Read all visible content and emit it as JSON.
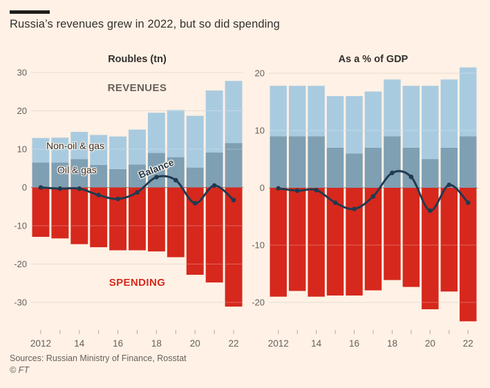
{
  "page": {
    "title": "Russia’s revenues grew in 2022, but so did spending"
  },
  "labels": {
    "revenues": "REVENUES",
    "spending": "SPENDING",
    "non_oil_gas": "Non-oil & gas",
    "oil_gas": "Oil & gas",
    "balance": "Balance"
  },
  "footer": {
    "sources": "Sources: Russian Ministry of Finance, Rosstat",
    "copyright": "© FT"
  },
  "colors": {
    "background": "#fff1e5",
    "bar_non_oil_gas": "#a9cbe0",
    "bar_oil_gas": "#7f9fb3",
    "bar_spending": "#d6281d",
    "balance_line": "#213a50",
    "grid": "#ddd0c1",
    "zero_line": "#8f8579",
    "axis_text": "#66605c",
    "tick_mark": "#b3a89c",
    "title_text": "#33302e"
  },
  "chart_data": [
    {
      "type": "bar",
      "title": "Roubles (tn)",
      "categories": [
        "2012",
        "2013",
        "2014",
        "2015",
        "2016",
        "2017",
        "2018",
        "2019",
        "2020",
        "2021",
        "2022"
      ],
      "series": [
        {
          "name": "Oil & gas revenues",
          "type": "bar-stack",
          "color": "#7f9fb3",
          "values": [
            6.5,
            6.5,
            7.4,
            5.9,
            4.8,
            6.0,
            9.0,
            7.9,
            5.2,
            9.1,
            11.6
          ]
        },
        {
          "name": "Non-oil & gas revenues",
          "type": "bar-stack",
          "color": "#a9cbe0",
          "values": [
            6.4,
            6.5,
            7.1,
            7.8,
            8.5,
            9.1,
            10.5,
            12.3,
            13.5,
            16.2,
            16.2
          ]
        },
        {
          "name": "Spending",
          "type": "bar",
          "color": "#d6281d",
          "values": [
            -12.9,
            -13.3,
            -14.8,
            -15.6,
            -16.4,
            -16.4,
            -16.7,
            -18.2,
            -22.8,
            -24.8,
            -31.1
          ]
        },
        {
          "name": "Balance",
          "type": "line",
          "color": "#213a50",
          "values": [
            0.0,
            -0.3,
            -0.3,
            -2.0,
            -3.0,
            -1.3,
            2.7,
            1.9,
            -4.1,
            0.5,
            -3.3
          ]
        }
      ],
      "yticks": [
        30,
        20,
        10,
        0,
        -10,
        -20,
        -30
      ],
      "ylim": [
        -31.5,
        30.5
      ],
      "xtick_labels": [
        "2012",
        "14",
        "16",
        "18",
        "20",
        "22"
      ],
      "grid": true,
      "legend_position": "none"
    },
    {
      "type": "bar",
      "title": "As a % of GDP",
      "categories": [
        "2012",
        "2013",
        "2014",
        "2015",
        "2016",
        "2017",
        "2018",
        "2019",
        "2020",
        "2021",
        "2022"
      ],
      "series": [
        {
          "name": "Oil & gas revenues",
          "type": "bar-stack",
          "color": "#7f9fb3",
          "values": [
            9.0,
            9.0,
            9.0,
            7.0,
            6.0,
            7.0,
            9.0,
            7.0,
            5.0,
            7.0,
            9.0
          ]
        },
        {
          "name": "Non-oil & gas revenues",
          "type": "bar-stack",
          "color": "#a9cbe0",
          "values": [
            8.8,
            8.8,
            8.8,
            9.0,
            10.0,
            9.8,
            9.9,
            10.8,
            12.8,
            11.9,
            12.0
          ]
        },
        {
          "name": "Spending",
          "type": "bar",
          "color": "#d6281d",
          "values": [
            -19.0,
            -18.0,
            -19.0,
            -18.8,
            -18.8,
            -17.9,
            -16.1,
            -17.3,
            -21.2,
            -18.1,
            -23.3
          ]
        },
        {
          "name": "Balance",
          "type": "line",
          "color": "#213a50",
          "values": [
            -0.1,
            -0.5,
            -0.4,
            -2.6,
            -3.7,
            -1.5,
            2.6,
            1.9,
            -4.0,
            0.5,
            -2.6
          ]
        }
      ],
      "yticks": [
        20,
        10,
        0,
        -10,
        -20
      ],
      "ylim": [
        -23.6,
        21.2
      ],
      "xtick_labels": [
        "2012",
        "14",
        "16",
        "18",
        "20",
        "22"
      ],
      "grid": true,
      "legend_position": "none"
    }
  ]
}
